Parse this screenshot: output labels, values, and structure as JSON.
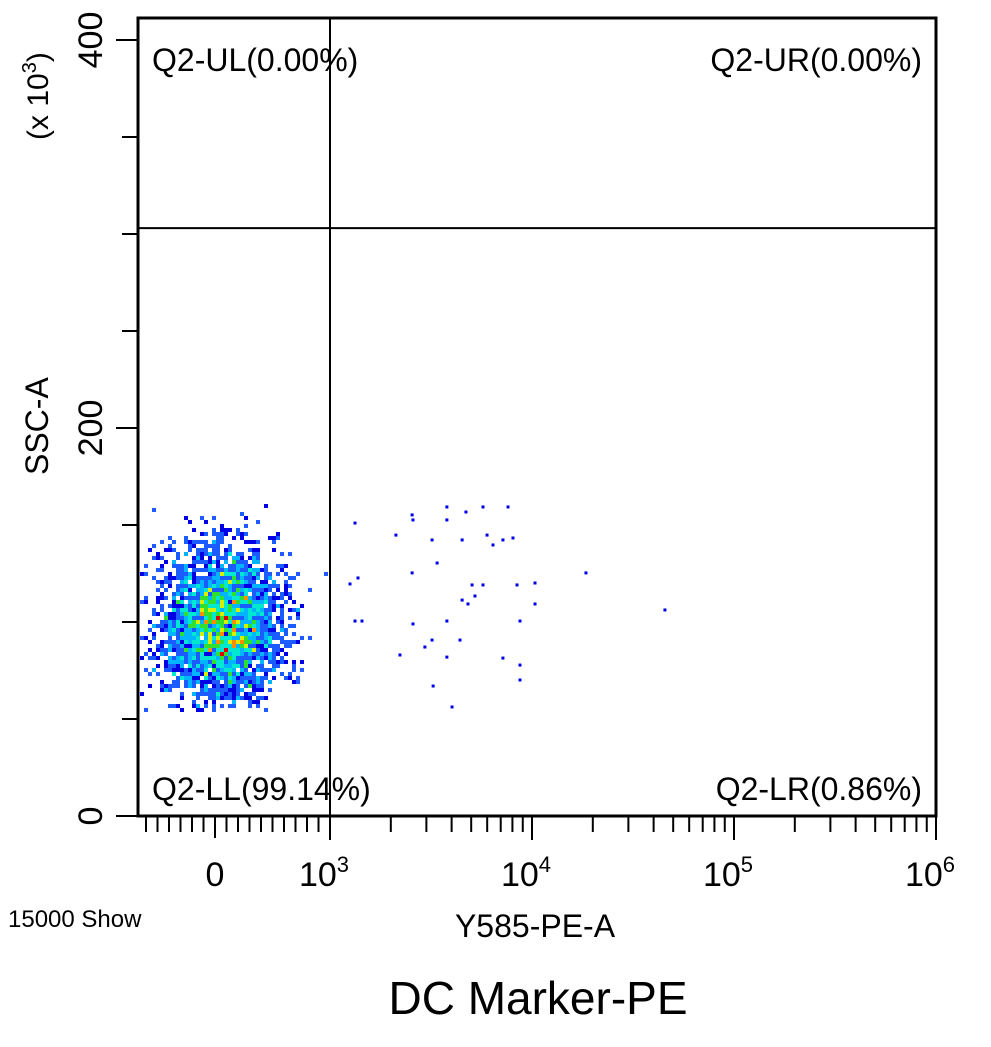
{
  "chart_data": {
    "type": "scatter",
    "subtype": "flow-cytometry-density-plot",
    "title": "DC Marker-PE",
    "xlabel": "Y585-PE-A",
    "ylabel": "SSC-A",
    "ylabel_multiplier": "(x 10",
    "ylabel_multiplier_exp": "3",
    "ylabel_multiplier_close": ")",
    "event_count_label": "15000 Show",
    "xscale": "biexponential",
    "xlim": [
      -670,
      1000000
    ],
    "ylim": [
      0,
      410
    ],
    "x_tick_labels": [
      {
        "value": 0,
        "base": "0",
        "exp": ""
      },
      {
        "value": 1000,
        "base": "10",
        "exp": "3"
      },
      {
        "value": 10000,
        "base": "10",
        "exp": "4"
      },
      {
        "value": 100000,
        "base": "10",
        "exp": "5"
      },
      {
        "value": 1000000,
        "base": "10",
        "exp": "6"
      }
    ],
    "y_tick_labels": [
      {
        "value": 0,
        "label": "0"
      },
      {
        "value": 200,
        "label": "200"
      },
      {
        "value": 400,
        "label": "400"
      }
    ],
    "gates": {
      "x_threshold": 1000,
      "y_threshold": 303
    },
    "quadrants": {
      "UL": "Q2-UL(0.00%)",
      "UR": "Q2-UR(0.00%)",
      "LL": "Q2-LL(99.14%)",
      "LR": "Q2-LR(0.86%)"
    },
    "main_population": {
      "count": 14871,
      "x_mean": 50,
      "x_sd": 250,
      "y_mean": 98,
      "y_sd": 19,
      "y_min": 55,
      "y_max": 160
    },
    "density_colors": [
      "#0000e6",
      "#1a5cff",
      "#00b4ff",
      "#00e8d0",
      "#30e030",
      "#d8f000",
      "#ff8c00",
      "#e00000"
    ],
    "outlier_points": [
      [
        1330,
        151
      ],
      [
        2550,
        155.2
      ],
      [
        2575,
        152.6
      ],
      [
        3790,
        159.3
      ],
      [
        4710,
        156.7
      ],
      [
        5720,
        159.3
      ],
      [
        7610,
        159.3
      ],
      [
        3790,
        152.6
      ],
      [
        2120,
        144.8
      ],
      [
        3200,
        142.3
      ],
      [
        4510,
        142.3
      ],
      [
        5990,
        144.8
      ],
      [
        6410,
        139.7
      ],
      [
        7180,
        142.3
      ],
      [
        8050,
        143.3
      ],
      [
        1256,
        119.6
      ],
      [
        1376,
        122.7
      ],
      [
        2550,
        125.3
      ],
      [
        3390,
        130.4
      ],
      [
        5050,
        119.1
      ],
      [
        5720,
        119.1
      ],
      [
        8430,
        119.1
      ],
      [
        10350,
        120.1
      ],
      [
        18500,
        125.3
      ],
      [
        4510,
        111.3
      ],
      [
        4820,
        109.3
      ],
      [
        5220,
        113.4
      ],
      [
        10350,
        109.3
      ],
      [
        45500,
        106.2
      ],
      [
        1330,
        100.5
      ],
      [
        1440,
        100.5
      ],
      [
        2575,
        99
      ],
      [
        3790,
        100.5
      ],
      [
        8720,
        100.5
      ],
      [
        2220,
        83
      ],
      [
        2950,
        87.1
      ],
      [
        3200,
        90.7
      ],
      [
        3790,
        81.9
      ],
      [
        4400,
        90.7
      ],
      [
        7180,
        81.4
      ],
      [
        8720,
        77.8
      ],
      [
        8720,
        70.1
      ],
      [
        3240,
        67
      ],
      [
        4020,
        56.2
      ]
    ]
  }
}
